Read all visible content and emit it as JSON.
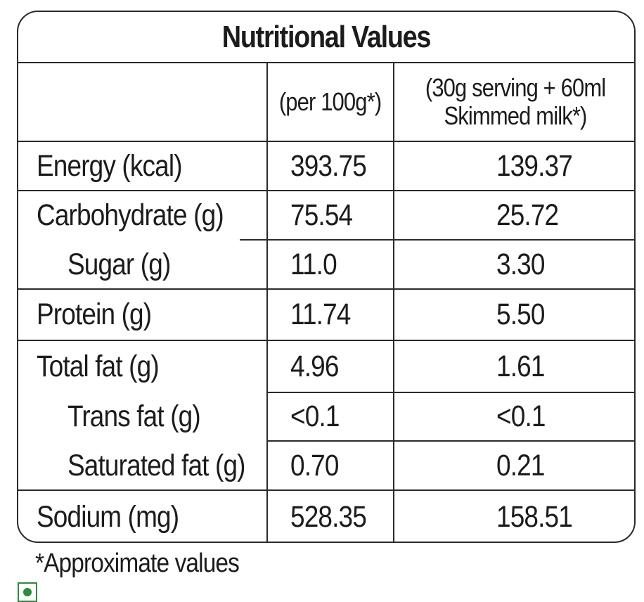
{
  "title": "Nutritional Values",
  "columns": {
    "col1": "(per 100g*)",
    "col2_line1": "(30g serving + 60ml",
    "col2_line2": "Skimmed milk*)"
  },
  "rows": [
    {
      "label": "Energy (kcal)",
      "per100g": "393.75",
      "serving": "139.37"
    },
    {
      "label": "Carbohydrate (g)",
      "per100g": "75.54",
      "serving": "25.72"
    },
    {
      "label": "Sugar (g)",
      "per100g": "11.0",
      "serving": "3.30"
    },
    {
      "label": "Protein (g)",
      "per100g": "11.74",
      "serving": "5.50"
    },
    {
      "label": "Total fat (g)",
      "per100g": "4.96",
      "serving": "1.61"
    },
    {
      "label": "Trans fat (g)",
      "per100g": "<0.1",
      "serving": "<0.1"
    },
    {
      "label": "Saturated fat (g)",
      "per100g": "0.70",
      "serving": "0.21"
    },
    {
      "label": "Sodium (mg)",
      "per100g": "528.35",
      "serving": "158.51"
    }
  ],
  "footnote": "*Approximate values",
  "symbols": {
    "veg_mark": "vegetarian-mark-icon",
    "veg_color": "#2e8b3a"
  }
}
